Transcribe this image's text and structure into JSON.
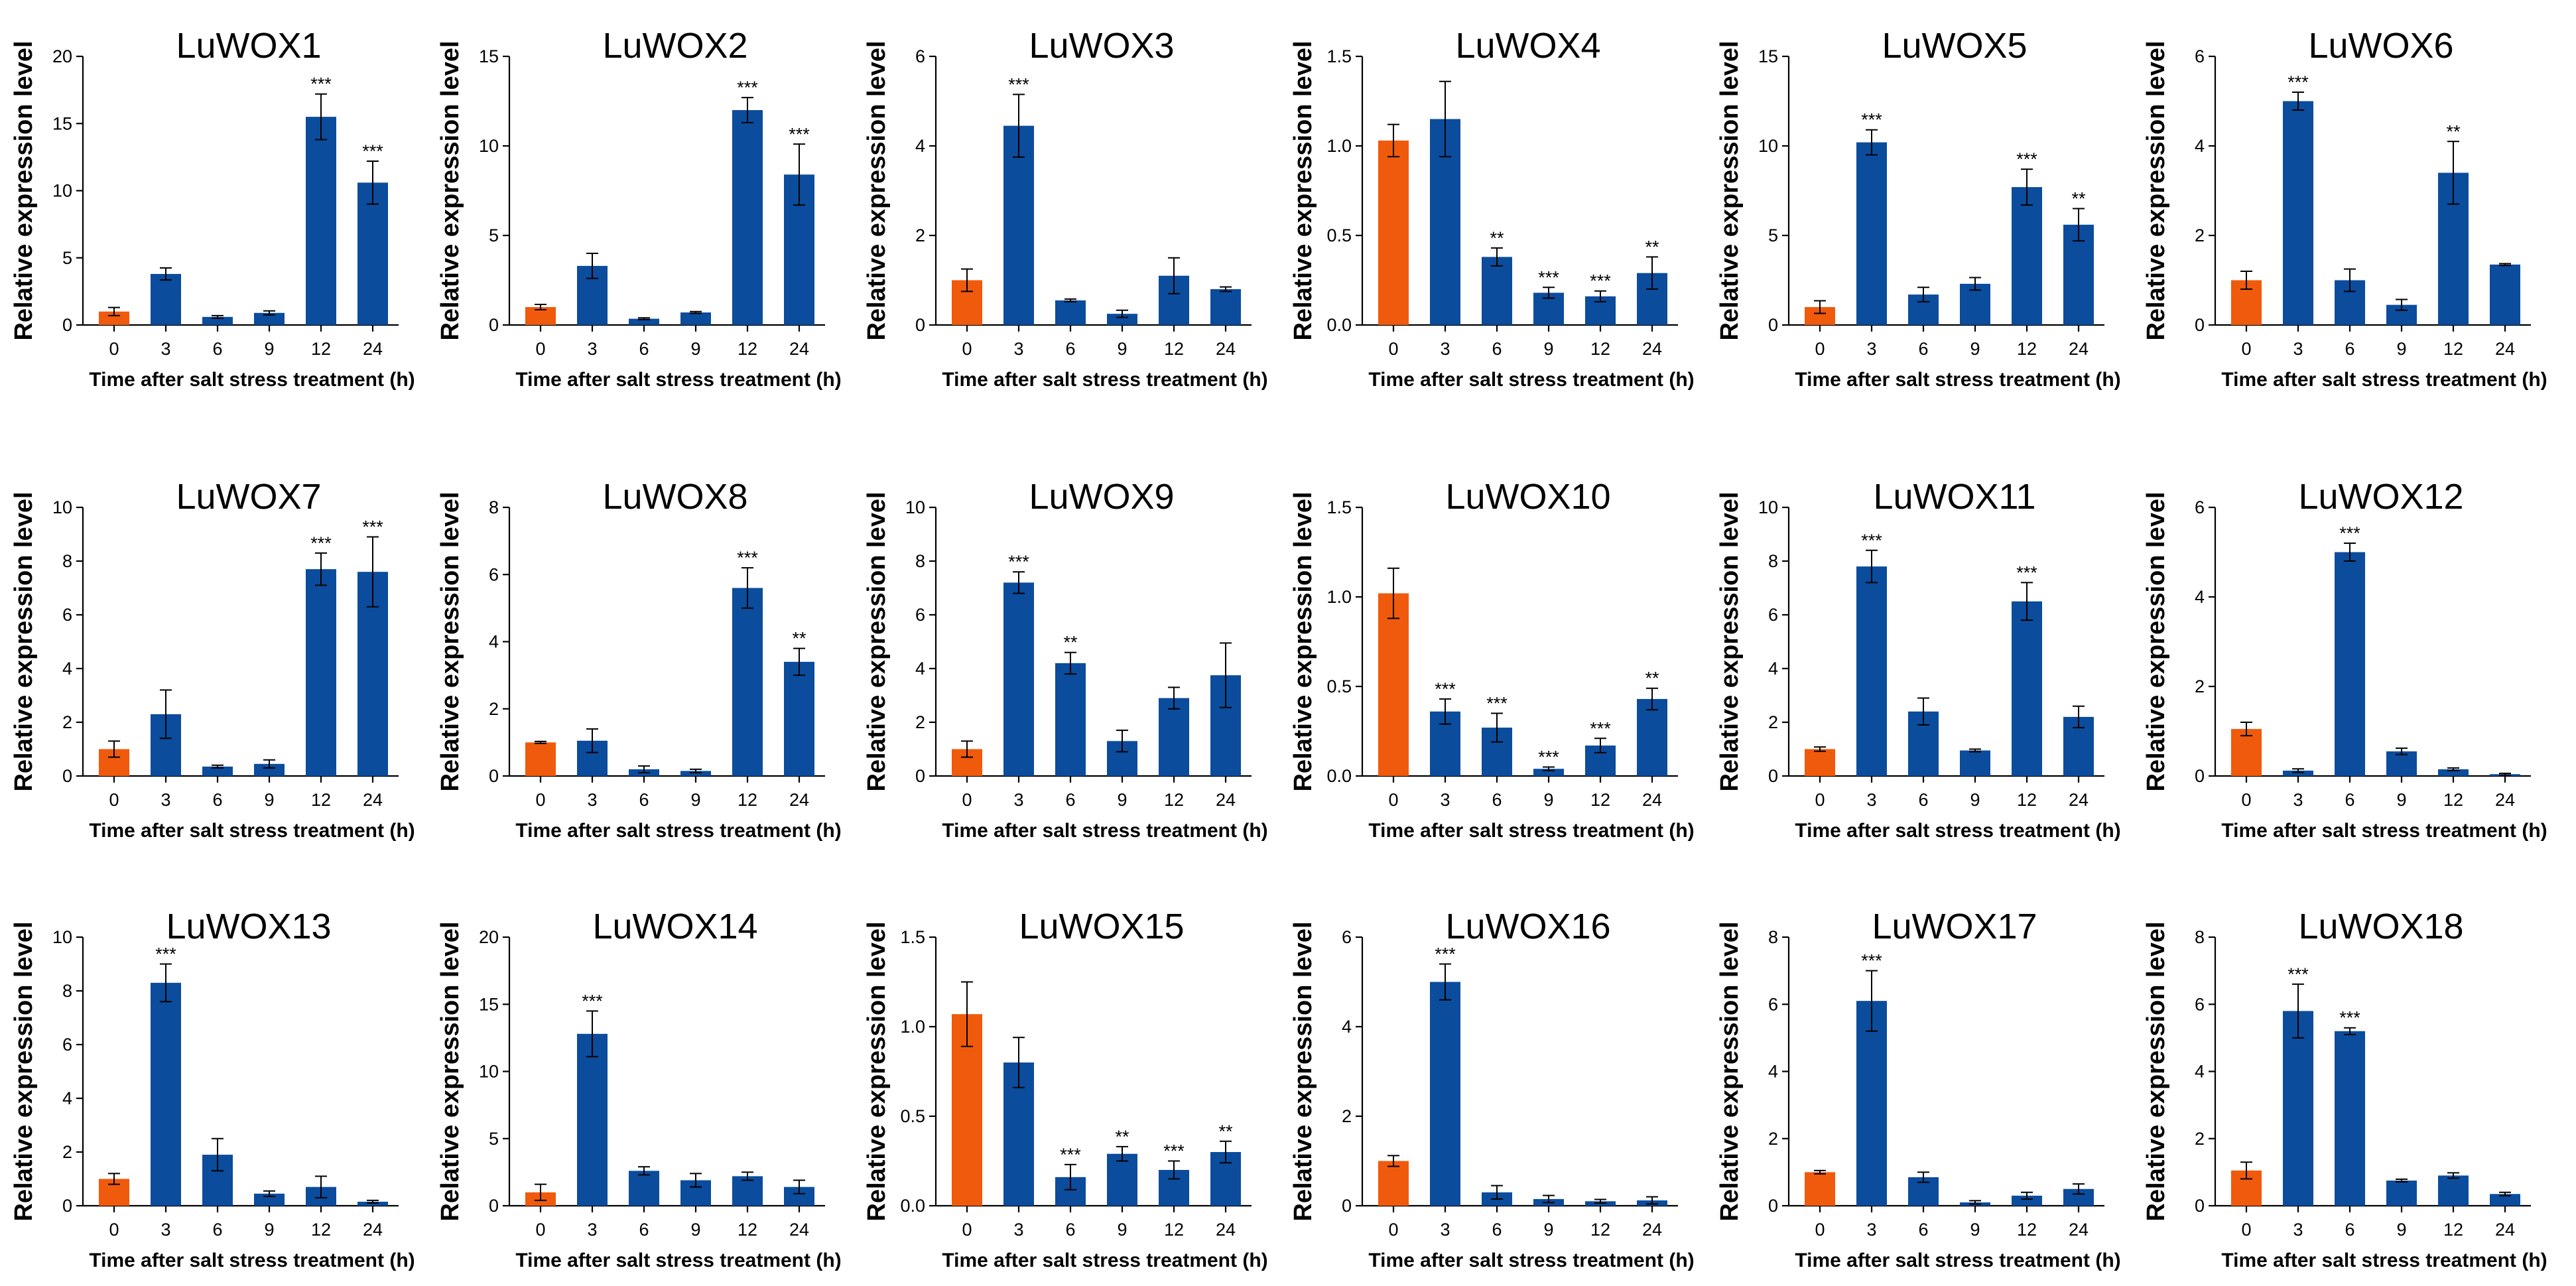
{
  "colors": {
    "control": "#F05A0C",
    "treatment": "#0B4C9C",
    "axis": "#000000",
    "error_bar": "#000000"
  },
  "chart_data": [
    {
      "type": "bar",
      "title": "LuWOX1",
      "xlabel": "Time after salt stress treatment (h)",
      "ylabel": "Relative expression level",
      "categories": [
        "0",
        "3",
        "6",
        "9",
        "12",
        "24"
      ],
      "values": [
        1.0,
        3.8,
        0.6,
        0.9,
        15.5,
        10.6
      ],
      "errors": [
        0.3,
        0.45,
        0.1,
        0.15,
        1.7,
        1.6
      ],
      "significance": [
        "",
        "",
        "",
        "",
        "***",
        "***"
      ],
      "ylim": [
        0,
        20
      ],
      "yticks": [
        "0",
        "5",
        "10",
        "15",
        "20"
      ]
    },
    {
      "type": "bar",
      "title": "LuWOX2",
      "xlabel": "Time after salt stress treatment (h)",
      "ylabel": "Relative expression level",
      "categories": [
        "0",
        "3",
        "6",
        "9",
        "12",
        "24"
      ],
      "values": [
        1.0,
        3.3,
        0.35,
        0.7,
        12.0,
        8.4
      ],
      "errors": [
        0.15,
        0.7,
        0.05,
        0.05,
        0.7,
        1.7
      ],
      "significance": [
        "",
        "",
        "",
        "",
        "***",
        "***"
      ],
      "ylim": [
        0,
        15
      ],
      "yticks": [
        "0",
        "5",
        "10",
        "15"
      ]
    },
    {
      "type": "bar",
      "title": "LuWOX3",
      "xlabel": "Time after salt stress treatment (h)",
      "ylabel": "Relative expression level",
      "categories": [
        "0",
        "3",
        "6",
        "9",
        "12",
        "24"
      ],
      "values": [
        1.0,
        4.45,
        0.55,
        0.25,
        1.1,
        0.8
      ],
      "errors": [
        0.25,
        0.7,
        0.03,
        0.08,
        0.4,
        0.05
      ],
      "significance": [
        "",
        "***",
        "",
        "",
        "",
        ""
      ],
      "ylim": [
        0,
        6
      ],
      "yticks": [
        "0",
        "2",
        "4",
        "6"
      ]
    },
    {
      "type": "bar",
      "title": "LuWOX4",
      "xlabel": "Time after salt stress treatment (h)",
      "ylabel": "Relative expression level",
      "categories": [
        "0",
        "3",
        "6",
        "9",
        "12",
        "24"
      ],
      "values": [
        1.03,
        1.15,
        0.38,
        0.18,
        0.16,
        0.29
      ],
      "errors": [
        0.09,
        0.21,
        0.05,
        0.03,
        0.03,
        0.09
      ],
      "significance": [
        "",
        "",
        "**",
        "***",
        "***",
        "**"
      ],
      "ylim": [
        0,
        1.5
      ],
      "yticks": [
        "0.0",
        "0.5",
        "1.0",
        "1.5"
      ]
    },
    {
      "type": "bar",
      "title": "LuWOX5",
      "xlabel": "Time after salt stress treatment (h)",
      "ylabel": "Relative expression level",
      "categories": [
        "0",
        "3",
        "6",
        "9",
        "12",
        "24"
      ],
      "values": [
        1.0,
        10.2,
        1.7,
        2.3,
        7.7,
        5.6
      ],
      "errors": [
        0.35,
        0.7,
        0.4,
        0.35,
        1.0,
        0.9
      ],
      "significance": [
        "",
        "***",
        "",
        "",
        "***",
        "**"
      ],
      "ylim": [
        0,
        15
      ],
      "yticks": [
        "0",
        "5",
        "10",
        "15"
      ]
    },
    {
      "type": "bar",
      "title": "LuWOX6",
      "xlabel": "Time after salt stress treatment (h)",
      "ylabel": "Relative expression level",
      "categories": [
        "0",
        "3",
        "6",
        "9",
        "12",
        "24"
      ],
      "values": [
        1.0,
        5.0,
        1.0,
        0.45,
        3.4,
        1.35
      ],
      "errors": [
        0.2,
        0.2,
        0.25,
        0.12,
        0.7,
        0.02
      ],
      "significance": [
        "",
        "***",
        "",
        "",
        "**",
        ""
      ],
      "ylim": [
        0,
        6
      ],
      "yticks": [
        "0",
        "2",
        "4",
        "6"
      ]
    },
    {
      "type": "bar",
      "title": "LuWOX7",
      "xlabel": "Time after salt stress treatment (h)",
      "ylabel": "Relative expression level",
      "categories": [
        "0",
        "3",
        "6",
        "9",
        "12",
        "24"
      ],
      "values": [
        1.0,
        2.3,
        0.35,
        0.45,
        7.7,
        7.6
      ],
      "errors": [
        0.3,
        0.9,
        0.05,
        0.15,
        0.6,
        1.3
      ],
      "significance": [
        "",
        "",
        "",
        "",
        "***",
        "***"
      ],
      "ylim": [
        0,
        10
      ],
      "yticks": [
        "0",
        "2",
        "4",
        "6",
        "8",
        "10"
      ]
    },
    {
      "type": "bar",
      "title": "LuWOX8",
      "xlabel": "Time after salt stress treatment (h)",
      "ylabel": "Relative expression level",
      "categories": [
        "0",
        "3",
        "6",
        "9",
        "12",
        "24"
      ],
      "values": [
        1.0,
        1.05,
        0.2,
        0.15,
        5.6,
        3.4
      ],
      "errors": [
        0.03,
        0.35,
        0.1,
        0.05,
        0.6,
        0.4
      ],
      "significance": [
        "",
        "",
        "",
        "",
        "***",
        "**"
      ],
      "ylim": [
        0,
        8
      ],
      "yticks": [
        "0",
        "2",
        "4",
        "6",
        "8"
      ]
    },
    {
      "type": "bar",
      "title": "LuWOX9",
      "xlabel": "Time after salt stress treatment (h)",
      "ylabel": "Relative expression level",
      "categories": [
        "0",
        "3",
        "6",
        "9",
        "12",
        "24"
      ],
      "values": [
        1.0,
        7.2,
        4.2,
        1.3,
        2.9,
        3.75
      ],
      "errors": [
        0.3,
        0.4,
        0.4,
        0.4,
        0.4,
        1.2
      ],
      "significance": [
        "",
        "***",
        "**",
        "",
        "",
        ""
      ],
      "ylim": [
        0,
        10
      ],
      "yticks": [
        "0",
        "2",
        "4",
        "6",
        "8",
        "10"
      ]
    },
    {
      "type": "bar",
      "title": "LuWOX10",
      "xlabel": "Time after salt stress treatment (h)",
      "ylabel": "Relative expression level",
      "categories": [
        "0",
        "3",
        "6",
        "9",
        "12",
        "24"
      ],
      "values": [
        1.02,
        0.36,
        0.27,
        0.04,
        0.17,
        0.43
      ],
      "errors": [
        0.14,
        0.07,
        0.08,
        0.01,
        0.04,
        0.06
      ],
      "significance": [
        "",
        "***",
        "***",
        "***",
        "***",
        "**"
      ],
      "ylim": [
        0,
        1.5
      ],
      "yticks": [
        "0.0",
        "0.5",
        "1.0",
        "1.5"
      ]
    },
    {
      "type": "bar",
      "title": "LuWOX11",
      "xlabel": "Time after salt stress treatment (h)",
      "ylabel": "Relative expression level",
      "categories": [
        "0",
        "3",
        "6",
        "9",
        "12",
        "24"
      ],
      "values": [
        1.0,
        7.8,
        2.4,
        0.95,
        6.5,
        2.2
      ],
      "errors": [
        0.08,
        0.6,
        0.5,
        0.05,
        0.7,
        0.4
      ],
      "significance": [
        "",
        "***",
        "",
        "",
        "***",
        ""
      ],
      "ylim": [
        0,
        10
      ],
      "yticks": [
        "0",
        "2",
        "4",
        "6",
        "8",
        "10"
      ]
    },
    {
      "type": "bar",
      "title": "LuWOX12",
      "xlabel": "Time after salt stress treatment (h)",
      "ylabel": "Relative expression level",
      "categories": [
        "0",
        "3",
        "6",
        "9",
        "12",
        "24"
      ],
      "values": [
        1.05,
        0.12,
        5.0,
        0.55,
        0.15,
        0.04
      ],
      "errors": [
        0.15,
        0.04,
        0.2,
        0.07,
        0.03,
        0.02
      ],
      "significance": [
        "",
        "",
        "***",
        "",
        "",
        ""
      ],
      "ylim": [
        0,
        6
      ],
      "yticks": [
        "0",
        "2",
        "4",
        "6"
      ]
    },
    {
      "type": "bar",
      "title": "LuWOX13",
      "xlabel": "Time after salt stress treatment (h)",
      "ylabel": "Relative expression level",
      "categories": [
        "0",
        "3",
        "6",
        "9",
        "12",
        "24"
      ],
      "values": [
        1.0,
        8.3,
        1.9,
        0.45,
        0.7,
        0.15
      ],
      "errors": [
        0.2,
        0.7,
        0.6,
        0.1,
        0.4,
        0.05
      ],
      "significance": [
        "",
        "***",
        "",
        "",
        "",
        ""
      ],
      "ylim": [
        0,
        10
      ],
      "yticks": [
        "0",
        "2",
        "4",
        "6",
        "8",
        "10"
      ]
    },
    {
      "type": "bar",
      "title": "LuWOX14",
      "xlabel": "Time after salt stress treatment (h)",
      "ylabel": "Relative expression level",
      "categories": [
        "0",
        "3",
        "6",
        "9",
        "12",
        "24"
      ],
      "values": [
        1.0,
        12.8,
        2.6,
        1.9,
        2.2,
        1.4
      ],
      "errors": [
        0.6,
        1.7,
        0.3,
        0.5,
        0.3,
        0.5
      ],
      "significance": [
        "",
        "***",
        "",
        "",
        "",
        ""
      ],
      "ylim": [
        0,
        20
      ],
      "yticks": [
        "0",
        "5",
        "10",
        "15",
        "20"
      ]
    },
    {
      "type": "bar",
      "title": "LuWOX15",
      "xlabel": "Time after salt stress treatment (h)",
      "ylabel": "Relative expression level",
      "categories": [
        "0",
        "3",
        "6",
        "9",
        "12",
        "24"
      ],
      "values": [
        1.07,
        0.8,
        0.16,
        0.29,
        0.2,
        0.3
      ],
      "errors": [
        0.18,
        0.14,
        0.07,
        0.04,
        0.05,
        0.06
      ],
      "significance": [
        "",
        "",
        "***",
        "**",
        "***",
        "**"
      ],
      "ylim": [
        0,
        1.5
      ],
      "yticks": [
        "0.0",
        "0.5",
        "1.0",
        "1.5"
      ]
    },
    {
      "type": "bar",
      "title": "LuWOX16",
      "xlabel": "Time after salt stress treatment (h)",
      "ylabel": "Relative expression level",
      "categories": [
        "0",
        "3",
        "6",
        "9",
        "12",
        "24"
      ],
      "values": [
        1.0,
        5.0,
        0.3,
        0.15,
        0.1,
        0.12
      ],
      "errors": [
        0.12,
        0.4,
        0.15,
        0.08,
        0.04,
        0.08
      ],
      "significance": [
        "",
        "***",
        "",
        "",
        "",
        ""
      ],
      "ylim": [
        0,
        6
      ],
      "yticks": [
        "0",
        "2",
        "4",
        "6"
      ]
    },
    {
      "type": "bar",
      "title": "LuWOX17",
      "xlabel": "Time after salt stress treatment (h)",
      "ylabel": "Relative expression level",
      "categories": [
        "0",
        "3",
        "6",
        "9",
        "12",
        "24"
      ],
      "values": [
        1.0,
        6.1,
        0.85,
        0.1,
        0.3,
        0.5
      ],
      "errors": [
        0.05,
        0.9,
        0.15,
        0.05,
        0.1,
        0.15
      ],
      "significance": [
        "",
        "***",
        "",
        "",
        "",
        ""
      ],
      "ylim": [
        0,
        8
      ],
      "yticks": [
        "0",
        "2",
        "4",
        "6",
        "8"
      ]
    },
    {
      "type": "bar",
      "title": "LuWOX18",
      "xlabel": "Time after salt stress treatment (h)",
      "ylabel": "Relative expression level",
      "categories": [
        "0",
        "3",
        "6",
        "9",
        "12",
        "24"
      ],
      "values": [
        1.05,
        5.8,
        5.2,
        0.75,
        0.9,
        0.35
      ],
      "errors": [
        0.25,
        0.8,
        0.1,
        0.04,
        0.08,
        0.05
      ],
      "significance": [
        "",
        "***",
        "***",
        "",
        "",
        ""
      ],
      "ylim": [
        0,
        8
      ],
      "yticks": [
        "0",
        "2",
        "4",
        "6",
        "8"
      ]
    }
  ]
}
